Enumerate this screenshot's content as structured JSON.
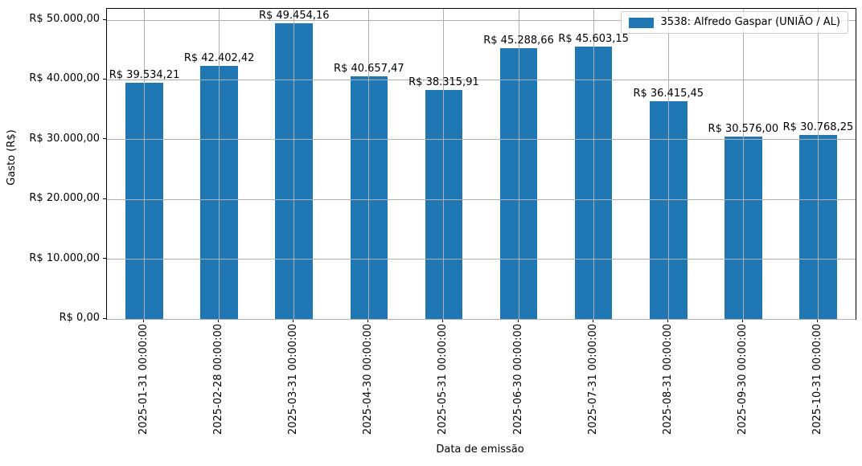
{
  "chart_data": {
    "type": "bar",
    "title": "",
    "xlabel": "Data de emissão",
    "ylabel": "Gasto (R$)",
    "categories": [
      "2025-01-31 00:00:00",
      "2025-02-28 00:00:00",
      "2025-03-31 00:00:00",
      "2025-04-30 00:00:00",
      "2025-05-31 00:00:00",
      "2025-06-30 00:00:00",
      "2025-07-31 00:00:00",
      "2025-08-31 00:00:00",
      "2025-09-30 00:00:00",
      "2025-10-31 00:00:00"
    ],
    "values": [
      39534.21,
      42402.42,
      49454.16,
      40657.47,
      38315.91,
      45288.66,
      45603.15,
      36415.45,
      30576.0,
      30768.25
    ],
    "bar_labels": [
      "R$ 39.534,21",
      "R$ 42.402,42",
      "R$ 49.454,16",
      "R$ 40.657,47",
      "R$ 38.315,91",
      "R$ 45.288,66",
      "R$ 45.603,15",
      "R$ 36.415,45",
      "R$ 30.576,00",
      "R$ 30.768,25"
    ],
    "yticks": [
      0,
      10000,
      20000,
      30000,
      40000,
      50000
    ],
    "ytick_labels": [
      "R$ 0,00",
      "R$ 10.000,00",
      "R$ 20.000,00",
      "R$ 30.000,00",
      "R$ 40.000,00",
      "R$ 50.000,00"
    ],
    "ylim": [
      0,
      51882
    ],
    "grid": true,
    "legend": {
      "label": "3538: Alfredo Gaspar (UNIÃO / AL)",
      "position": "upper right"
    },
    "colors": {
      "bar": "#1f77b4",
      "grid": "#b0b0b0",
      "spine": "#000000",
      "legend_border": "#cccccc",
      "background": "#ffffff"
    }
  }
}
